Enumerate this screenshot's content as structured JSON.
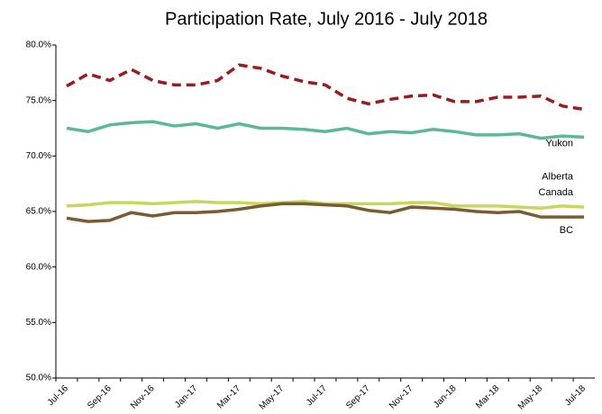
{
  "chart_data": {
    "type": "line",
    "title": "Participation Rate, July 2016 - July 2018",
    "categories": [
      "Jul-16",
      null,
      "Sep-16",
      null,
      "Nov-16",
      null,
      "Jan-17",
      null,
      "Mar-17",
      null,
      "May-17",
      null,
      "Jul-17",
      null,
      "Sep-17",
      null,
      "Nov-17",
      null,
      "Jan-18",
      null,
      "Mar-18",
      null,
      "May-18",
      null,
      "Jul-18"
    ],
    "ylim": [
      50,
      80
    ],
    "yticks": [
      {
        "value": 50,
        "label": "50.0%"
      },
      {
        "value": 55,
        "label": "55.0%"
      },
      {
        "value": 60,
        "label": "60.0%"
      },
      {
        "value": 65,
        "label": "65.0%"
      },
      {
        "value": 70,
        "label": "70.0%"
      },
      {
        "value": 75,
        "label": "75.0%"
      },
      {
        "value": 80,
        "label": "80.0%"
      }
    ],
    "series": [
      {
        "name": "Yukon",
        "color": "#9b1c1c",
        "dashed": true,
        "values": [
          76.3,
          77.4,
          76.8,
          77.8,
          76.8,
          76.4,
          76.4,
          76.8,
          78.2,
          77.9,
          77.2,
          76.7,
          76.4,
          75.2,
          74.7,
          75.1,
          75.4,
          75.5,
          74.9,
          74.9,
          75.3,
          75.3,
          75.4,
          74.5,
          74.2
        ]
      },
      {
        "name": "Alberta",
        "color": "#5cb89a",
        "dashed": false,
        "values": [
          72.5,
          72.2,
          72.8,
          73.0,
          73.1,
          72.7,
          72.9,
          72.5,
          72.9,
          72.5,
          72.5,
          72.4,
          72.2,
          72.5,
          72.0,
          72.2,
          72.1,
          72.4,
          72.2,
          71.9,
          71.9,
          72.0,
          71.6,
          71.8,
          71.7
        ]
      },
      {
        "name": "Canada",
        "color": "#c8d65a",
        "dashed": false,
        "values": [
          65.5,
          65.6,
          65.8,
          65.8,
          65.7,
          65.8,
          65.9,
          65.8,
          65.8,
          65.7,
          65.8,
          65.9,
          65.7,
          65.7,
          65.7,
          65.7,
          65.8,
          65.8,
          65.5,
          65.5,
          65.5,
          65.4,
          65.3,
          65.5,
          65.4
        ]
      },
      {
        "name": "BC",
        "color": "#7a5c32",
        "dashed": false,
        "values": [
          64.4,
          64.1,
          64.2,
          64.9,
          64.6,
          64.9,
          64.9,
          65.0,
          65.2,
          65.5,
          65.7,
          65.7,
          65.6,
          65.5,
          65.1,
          64.9,
          65.4,
          65.3,
          65.2,
          65.0,
          64.9,
          65.0,
          64.5,
          64.5,
          64.5
        ]
      }
    ]
  }
}
